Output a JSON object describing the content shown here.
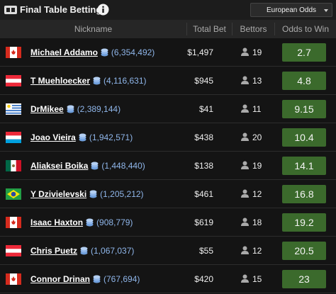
{
  "header": {
    "title": "Final Table Betting",
    "odds_format": "European Odds"
  },
  "table": {
    "columns": [
      "Nickname",
      "Total Bet",
      "Bettors",
      "Odds to Win"
    ],
    "rows": [
      {
        "name": "Michael Addamo",
        "chips": "(6,354,492)",
        "total_bet": "$1,497",
        "bettors": 19,
        "odds": 2.7
      },
      {
        "name": "T Muehloecker",
        "chips": "(4,116,631)",
        "total_bet": "$945",
        "bettors": 13,
        "odds": 4.8
      },
      {
        "name": "DrMikee",
        "chips": "(2,389,144)",
        "total_bet": "$41",
        "bettors": 11,
        "odds": 9.15
      },
      {
        "name": "Joao Vieira",
        "chips": "(1,942,571)",
        "total_bet": "$438",
        "bettors": 20,
        "odds": 10.4
      },
      {
        "name": "Aliaksei Boika",
        "chips": "(1,448,440)",
        "total_bet": "$138",
        "bettors": 19,
        "odds": 14.1
      },
      {
        "name": "Y Dzivielevski",
        "chips": "(1,205,212)",
        "total_bet": "$461",
        "bettors": 12,
        "odds": 16.8
      },
      {
        "name": "Isaac Haxton",
        "chips": "(908,779)",
        "total_bet": "$619",
        "bettors": 18,
        "odds": 19.2
      },
      {
        "name": "Chris Puetz",
        "chips": "(1,067,037)",
        "total_bet": "$55",
        "bettors": 12,
        "odds": 20.5
      },
      {
        "name": "Connor Drinan",
        "chips": "(767,694)",
        "total_bet": "$420",
        "bettors": 15,
        "odds": 23
      }
    ]
  }
}
